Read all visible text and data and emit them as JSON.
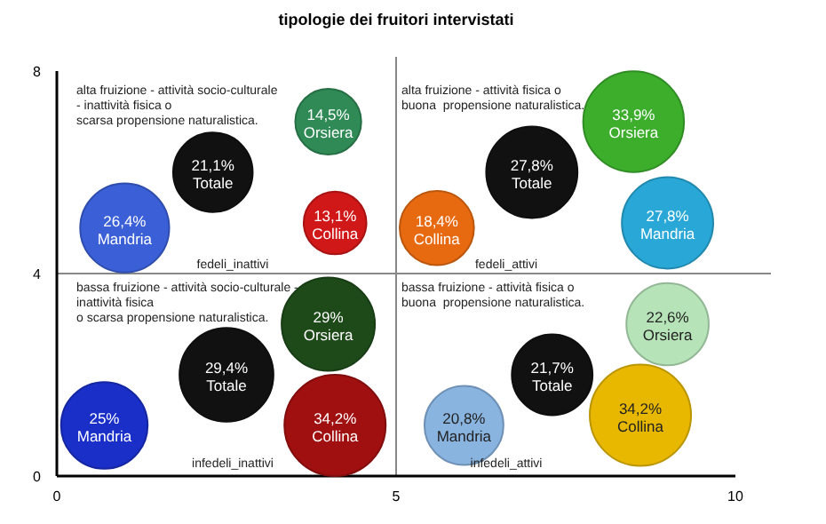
{
  "chart_data": {
    "type": "bubble",
    "title": "tipologie dei fruitori intervistati",
    "xlim": [
      0,
      10
    ],
    "xticks": [
      0,
      5,
      10
    ],
    "ylim": [
      0,
      8
    ],
    "yticks": [
      0,
      4,
      8
    ],
    "series": [
      {
        "name": "Mandria",
        "x": [
          1.0,
          9.0,
          0.7,
          6.0
        ],
        "values": [
          4.9,
          5.0,
          1.0,
          1.0
        ],
        "sizes": [
          26.4,
          27.8,
          25,
          20.8
        ],
        "colors": [
          "#3a5fd6",
          "#29a8d8",
          "#1a2fc8",
          "#8ab4e0"
        ],
        "value_labels": [
          "26,4%",
          "27,8%",
          "25%",
          "20,8%"
        ]
      },
      {
        "name": "Totale",
        "x": [
          2.3,
          7.0,
          2.5,
          7.3
        ],
        "values": [
          6.0,
          6.0,
          2.0,
          2.0
        ],
        "sizes": [
          21.1,
          27.8,
          29.4,
          21.7
        ],
        "colors": [
          "#111111",
          "#111111",
          "#111111",
          "#111111"
        ],
        "value_labels": [
          "21,1%",
          "27,8%",
          "29,4%",
          "21,7%"
        ]
      },
      {
        "name": "Orsiera",
        "x": [
          4.0,
          8.5,
          4.0,
          9.0
        ],
        "values": [
          7.0,
          7.0,
          3.0,
          3.0
        ],
        "sizes": [
          14.5,
          33.9,
          29,
          22.6
        ],
        "colors": [
          "#2f8a55",
          "#3cae2c",
          "#1e4a1a",
          "#b6e3b8"
        ],
        "value_labels": [
          "14,5%",
          "33,9%",
          "29%",
          "22,6%"
        ]
      },
      {
        "name": "Collina",
        "x": [
          4.1,
          5.6,
          4.1,
          8.6
        ],
        "values": [
          5.0,
          4.9,
          1.0,
          1.2
        ],
        "sizes": [
          13.1,
          18.4,
          34.2,
          34.2
        ],
        "colors": [
          "#d01818",
          "#e86a10",
          "#a01010",
          "#e8b800"
        ],
        "value_labels": [
          "13,1%",
          "18,4%",
          "34,2%",
          "34,2%"
        ]
      }
    ],
    "ref_lines": [
      {
        "axis": "x",
        "value": 5,
        "color": "#888888"
      },
      {
        "axis": "y",
        "value": 4,
        "color": "#888888"
      }
    ],
    "annotations": [
      "alta fruizione - attività socio-culturale\n- inattività fisica o\nscarsa propensione naturalistica.",
      "alta fruizione - attività fisica o\nbuona  propensione naturalistica.",
      "bassa fruizione - attività socio-culturale -\ninattività fisica\no scarsa propensione naturalistica.",
      "bassa fruizione - attività fisica o\nbuona  propensione naturalistica.",
      "fedeli_inattivi",
      "fedeli_attivi",
      "infedeli_inattivi",
      "infedeli_attivi"
    ]
  }
}
